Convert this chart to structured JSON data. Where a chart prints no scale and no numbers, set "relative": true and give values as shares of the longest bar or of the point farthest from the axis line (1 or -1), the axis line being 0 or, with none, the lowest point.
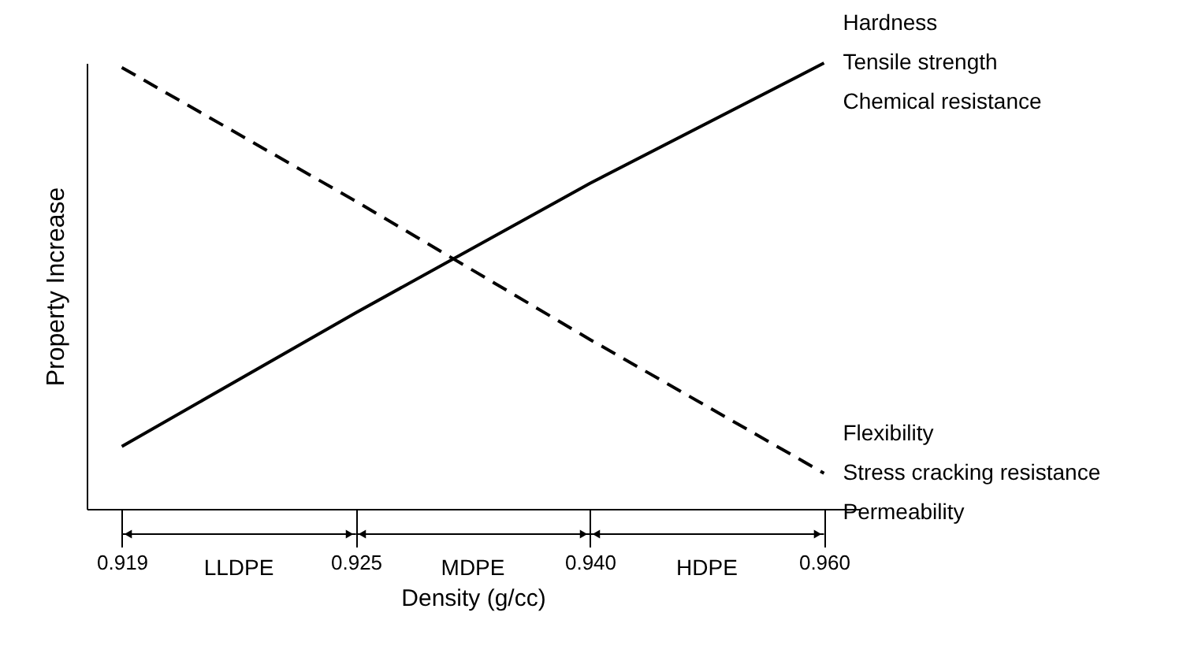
{
  "chart_data": {
    "type": "line",
    "relative": true,
    "xlabel": "Density (g/cc)",
    "ylabel": "Property Increase",
    "categories": [
      "0.919",
      "0.925",
      "0.940",
      "0.960"
    ],
    "series": [
      {
        "color": "#000000",
        "line_style": "solid",
        "values": [
          0.14,
          0.44,
          0.73,
          1.0
        ]
      },
      {
        "color": "#000000",
        "line_style": "dashed",
        "values": [
          0.99,
          0.69,
          0.38,
          0.08
        ]
      }
    ],
    "annotations": [
      "Hardness",
      "Tensile strength",
      "Chemical resistance",
      "Flexibility",
      "Stress cracking resistance",
      "Permeability",
      "LLDPE",
      "MDPE",
      "HDPE"
    ],
    "tick_labels": "x",
    "grid": false,
    "marker": "none"
  }
}
